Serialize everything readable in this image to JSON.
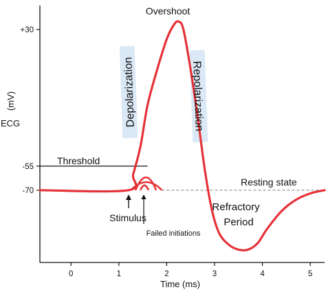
{
  "chart_data": {
    "type": "line",
    "title": "",
    "xlabel": "Time (ms)",
    "ylabel": "ECG (mV)",
    "ylabel_parts": [
      "(mV)",
      "ECG"
    ],
    "xlim": [
      -0.65,
      5.3
    ],
    "ylim": [
      -115,
      45
    ],
    "x_ticks": [
      0,
      1,
      2,
      3,
      4,
      5
    ],
    "y_ticks": [
      {
        "value": 30,
        "label": "+30"
      },
      {
        "value": -55,
        "label": "-55"
      },
      {
        "value": -70,
        "label": "-70"
      }
    ],
    "series": [
      {
        "x": [
          -0.65,
          1.2,
          1.3,
          1.45,
          1.6,
          1.8,
          2.0,
          2.15,
          2.25,
          2.35,
          2.5,
          2.65,
          2.8,
          2.95,
          3.1,
          3.3,
          3.5,
          3.7,
          3.9,
          4.1,
          4.4,
          4.7,
          5.0,
          5.3
        ],
        "y": [
          -70,
          -70,
          -60,
          -43,
          -17,
          5,
          24,
          33,
          35,
          30,
          5,
          -25,
          -58,
          -83,
          -97,
          -104,
          -107,
          -107,
          -103,
          -94,
          -83,
          -76,
          -72,
          -70
        ]
      }
    ],
    "failed_initiations": [
      {
        "start": 1.25,
        "end": 1.9,
        "peak": -65
      },
      {
        "start": 1.35,
        "end": 1.78,
        "peak": -62
      },
      {
        "start": 1.45,
        "end": 1.62,
        "peak": -67
      }
    ],
    "threshold": -55,
    "resting": -70,
    "annotations": {
      "overshoot": "Overshoot",
      "depolarization": "Depolarization",
      "repolarization": "Repolarization",
      "threshold": "Threshold",
      "resting_state": "Resting state",
      "stimulus": "Stimulus",
      "failed_initiations": "Failed initiations",
      "refractory_line1": "Refractory",
      "refractory_line2": "Period"
    },
    "colors": {
      "curve": "#e53238",
      "axis": "#111111",
      "highlight": "#dbe9f6"
    }
  }
}
